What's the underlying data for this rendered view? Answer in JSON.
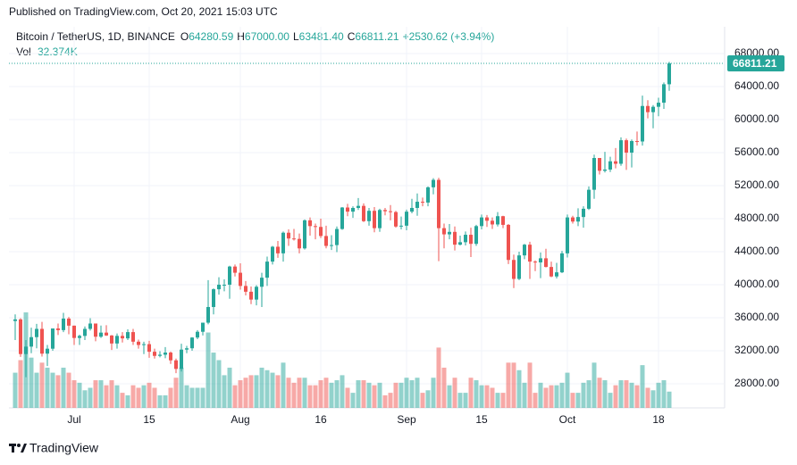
{
  "published": "Published on TradingView.com, Oct 20, 2021 15:03 UTC",
  "header": {
    "symbol": "Bitcoin / TetherUS, 1D, BINANCE",
    "fields": [
      {
        "key": "O",
        "value": "64280.59"
      },
      {
        "key": "H",
        "value": "67000.00"
      },
      {
        "key": "L",
        "value": "63481.40"
      },
      {
        "key": "C",
        "value": "66811.21"
      }
    ],
    "change": "+2530.62 (+3.94%)"
  },
  "brand": "TradingView",
  "chart_data": {
    "type": "candlestick",
    "up_color": "#26a69a",
    "down_color": "#ef5350",
    "ylim": [
      25081,
      70162
    ],
    "yticks": [
      {
        "value": 28000,
        "label": "28000.00"
      },
      {
        "value": 32000,
        "label": "32000.00"
      },
      {
        "value": 36000,
        "label": "36000.00"
      },
      {
        "value": 40000,
        "label": "40000.00"
      },
      {
        "value": 44000,
        "label": "44000.00"
      },
      {
        "value": 48000,
        "label": "48000.00"
      },
      {
        "value": 52000,
        "label": "52000.00"
      },
      {
        "value": 56000,
        "label": "56000.00"
      },
      {
        "value": 60000,
        "label": "60000.00"
      },
      {
        "value": 64000,
        "label": "64000.00"
      },
      {
        "value": 68000,
        "label": "68000.00"
      }
    ],
    "grid": true,
    "categories": [
      null,
      null,
      null,
      null,
      null,
      null,
      null,
      null,
      null,
      null,
      null,
      "Jul",
      null,
      null,
      null,
      null,
      null,
      null,
      null,
      null,
      null,
      null,
      null,
      null,
      null,
      "15",
      null,
      null,
      null,
      null,
      null,
      null,
      null,
      null,
      null,
      null,
      null,
      null,
      null,
      null,
      null,
      null,
      "Aug",
      null,
      null,
      null,
      null,
      null,
      null,
      null,
      null,
      null,
      null,
      null,
      null,
      null,
      null,
      "16",
      null,
      null,
      null,
      null,
      null,
      null,
      null,
      null,
      null,
      null,
      null,
      null,
      null,
      null,
      null,
      "Sep",
      null,
      null,
      null,
      null,
      null,
      null,
      null,
      null,
      null,
      null,
      null,
      null,
      null,
      "15",
      null,
      null,
      null,
      null,
      null,
      null,
      null,
      null,
      null,
      null,
      null,
      null,
      null,
      null,
      null,
      "Oct",
      null,
      null,
      null,
      null,
      null,
      null,
      null,
      null,
      null,
      null,
      null,
      null,
      null,
      null,
      null,
      null,
      "18",
      null,
      null
    ],
    "ohlc": [
      [
        35600,
        36400,
        33300,
        35800
      ],
      [
        35800,
        35950,
        31250,
        31600
      ],
      [
        31600,
        33300,
        28800,
        32500
      ],
      [
        32500,
        34800,
        31700,
        33650
      ],
      [
        33650,
        35250,
        32300,
        34650
      ],
      [
        34650,
        35500,
        31300,
        31650
      ],
      [
        31650,
        32700,
        30150,
        32250
      ],
      [
        32250,
        34700,
        32000,
        34700
      ],
      [
        34700,
        35300,
        33900,
        34500
      ],
      [
        34500,
        36600,
        34250,
        35900
      ],
      [
        35900,
        36100,
        34000,
        35040
      ],
      [
        35040,
        35050,
        32700,
        33550
      ],
      [
        33550,
        33950,
        32700,
        33800
      ],
      [
        33800,
        34950,
        33300,
        34650
      ],
      [
        34650,
        35950,
        34450,
        35300
      ],
      [
        35300,
        35300,
        33150,
        33700
      ],
      [
        33700,
        35050,
        33550,
        34200
      ],
      [
        34200,
        35100,
        33800,
        33850
      ],
      [
        33850,
        33900,
        32100,
        32880
      ],
      [
        32880,
        34100,
        32250,
        33800
      ],
      [
        33800,
        34250,
        33000,
        33500
      ],
      [
        33500,
        34600,
        33300,
        34260
      ],
      [
        34260,
        34650,
        32700,
        33100
      ],
      [
        33100,
        33350,
        32250,
        32700
      ],
      [
        32700,
        33100,
        31600,
        32800
      ],
      [
        32800,
        33200,
        31150,
        31880
      ],
      [
        31880,
        32250,
        31050,
        31380
      ],
      [
        31380,
        31950,
        31200,
        31520
      ],
      [
        31520,
        32450,
        31100,
        31780
      ],
      [
        31780,
        31900,
        30400,
        30840
      ],
      [
        30840,
        31050,
        29280,
        29800
      ],
      [
        29800,
        32850,
        29480,
        32140
      ],
      [
        32140,
        32600,
        31700,
        32300
      ],
      [
        32300,
        33650,
        32000,
        33600
      ],
      [
        33600,
        34500,
        33400,
        34300
      ],
      [
        34300,
        35400,
        33850,
        35400
      ],
      [
        35400,
        40550,
        35200,
        37300
      ],
      [
        37300,
        39550,
        36400,
        39450
      ],
      [
        39450,
        40900,
        38800,
        40000
      ],
      [
        40000,
        40650,
        39200,
        40000
      ],
      [
        40000,
        42300,
        38300,
        42200
      ],
      [
        42200,
        42450,
        41000,
        41450
      ],
      [
        41450,
        42600,
        39400,
        39850
      ],
      [
        39850,
        40450,
        38700,
        39150
      ],
      [
        39150,
        39780,
        37650,
        38200
      ],
      [
        38200,
        39950,
        37500,
        39750
      ],
      [
        39750,
        41450,
        37300,
        40850
      ],
      [
        40850,
        43400,
        39850,
        42800
      ],
      [
        42800,
        44700,
        42450,
        44600
      ],
      [
        44600,
        45300,
        43250,
        43800
      ],
      [
        43800,
        46450,
        42800,
        46300
      ],
      [
        46300,
        46700,
        44700,
        45600
      ],
      [
        45600,
        46750,
        45350,
        45550
      ],
      [
        45550,
        46200,
        43800,
        44400
      ],
      [
        44400,
        47900,
        44250,
        47800
      ],
      [
        47800,
        48150,
        45950,
        47100
      ],
      [
        47100,
        47400,
        45500,
        47000
      ],
      [
        47000,
        48000,
        45650,
        45900
      ],
      [
        45900,
        47150,
        44400,
        44700
      ],
      [
        44700,
        46000,
        44200,
        44800
      ],
      [
        44800,
        47050,
        43950,
        46750
      ],
      [
        46750,
        49400,
        46650,
        49350
      ],
      [
        49350,
        49800,
        48300,
        48850
      ],
      [
        48850,
        49500,
        48100,
        49300
      ],
      [
        49300,
        50500,
        49050,
        49550
      ],
      [
        49550,
        49850,
        47600,
        47700
      ],
      [
        47700,
        49300,
        47150,
        48950
      ],
      [
        48950,
        49400,
        46350,
        46850
      ],
      [
        46850,
        49200,
        46400,
        49050
      ],
      [
        49050,
        49300,
        48400,
        48900
      ],
      [
        48900,
        49650,
        47800,
        48800
      ],
      [
        48800,
        48950,
        46900,
        47050
      ],
      [
        47050,
        48250,
        46700,
        47150
      ],
      [
        47150,
        49100,
        46600,
        48850
      ],
      [
        48850,
        50400,
        48650,
        49300
      ],
      [
        49300,
        51050,
        48350,
        50050
      ],
      [
        50050,
        50550,
        49500,
        49950
      ],
      [
        49950,
        51900,
        49500,
        51800
      ],
      [
        51800,
        52900,
        50950,
        52700
      ],
      [
        52700,
        52950,
        42850,
        46850
      ],
      [
        46850,
        47400,
        44400,
        46100
      ],
      [
        46100,
        47350,
        45500,
        46400
      ],
      [
        46400,
        47050,
        44150,
        44850
      ],
      [
        44850,
        45950,
        44750,
        45150
      ],
      [
        45150,
        46450,
        44750,
        46050
      ],
      [
        46050,
        46900,
        43350,
        44950
      ],
      [
        44950,
        47250,
        44700,
        47100
      ],
      [
        47100,
        48500,
        46700,
        48150
      ],
      [
        48150,
        48450,
        47000,
        47750
      ],
      [
        47750,
        48150,
        46750,
        47300
      ],
      [
        47300,
        48800,
        47050,
        48300
      ],
      [
        48300,
        48350,
        46850,
        47250
      ],
      [
        47250,
        47350,
        42500,
        43000
      ],
      [
        43000,
        43650,
        39600,
        40700
      ],
      [
        40700,
        44000,
        40550,
        43550
      ],
      [
        43550,
        44950,
        43100,
        44850
      ],
      [
        44850,
        45200,
        40700,
        42800
      ],
      [
        42800,
        42950,
        41650,
        42700
      ],
      [
        42700,
        43900,
        40800,
        43200
      ],
      [
        43200,
        44350,
        42100,
        42150
      ],
      [
        42150,
        42800,
        40900,
        41000
      ],
      [
        41000,
        42650,
        40750,
        41500
      ],
      [
        41500,
        44100,
        41400,
        43800
      ],
      [
        43800,
        48500,
        43300,
        48150
      ],
      [
        48150,
        48350,
        47400,
        47650
      ],
      [
        47650,
        49250,
        47100,
        48200
      ],
      [
        48200,
        49500,
        46900,
        49200
      ],
      [
        49200,
        51900,
        49050,
        51500
      ],
      [
        51500,
        55750,
        50400,
        55350
      ],
      [
        55350,
        55350,
        53350,
        53800
      ],
      [
        53800,
        56100,
        53600,
        53950
      ],
      [
        53950,
        55500,
        53650,
        54950
      ],
      [
        54950,
        56550,
        54100,
        54650
      ],
      [
        54650,
        57850,
        54400,
        57500
      ],
      [
        57500,
        57700,
        53900,
        56000
      ],
      [
        56000,
        57600,
        54200,
        57400
      ],
      [
        57400,
        58550,
        56850,
        57350
      ],
      [
        57350,
        62900,
        56850,
        61650
      ],
      [
        61650,
        62350,
        60150,
        60900
      ],
      [
        60900,
        61750,
        58950,
        61550
      ],
      [
        61550,
        62650,
        60400,
        62050
      ],
      [
        62050,
        64500,
        61300,
        64280.59
      ],
      [
        64280.59,
        67000,
        63481.4,
        66811.21
      ]
    ],
    "volume": {
      "name": "Vol",
      "last_label": "32.374K",
      "values": [
        70,
        95,
        190,
        100,
        70,
        90,
        80,
        70,
        65,
        80,
        70,
        55,
        50,
        35,
        40,
        55,
        55,
        45,
        55,
        45,
        30,
        25,
        45,
        40,
        45,
        50,
        40,
        25,
        25,
        40,
        60,
        80,
        45,
        40,
        40,
        40,
        150,
        110,
        95,
        65,
        80,
        45,
        55,
        60,
        65,
        65,
        80,
        75,
        70,
        65,
        90,
        60,
        50,
        60,
        60,
        45,
        45,
        55,
        60,
        50,
        55,
        65,
        40,
        30,
        55,
        55,
        50,
        45,
        50,
        25,
        30,
        50,
        50,
        60,
        55,
        60,
        30,
        35,
        60,
        120,
        80,
        45,
        60,
        30,
        30,
        60,
        55,
        45,
        45,
        40,
        30,
        30,
        90,
        90,
        75,
        50,
        90,
        30,
        50,
        40,
        45,
        45,
        50,
        70,
        30,
        30,
        50,
        55,
        90,
        60,
        55,
        30,
        45,
        55,
        55,
        50,
        45,
        85,
        40,
        35,
        50,
        55,
        32.374
      ]
    }
  }
}
